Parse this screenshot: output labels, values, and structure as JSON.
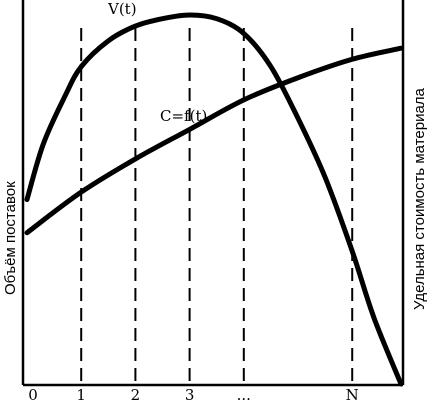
{
  "chart_data": {
    "type": "line",
    "title": "",
    "xlabel": "",
    "ylabel_left": "Объём поставок",
    "ylabel_right": "Удельная стоимость материала",
    "x_tick_labels": [
      "0",
      "1",
      "2",
      "3",
      "...",
      "N"
    ],
    "x_tick_positions": [
      0,
      1,
      2,
      3,
      4,
      6
    ],
    "dashed_lines_at": [
      1,
      2,
      3,
      4,
      6
    ],
    "xlim": [
      0,
      6.9
    ],
    "ylim": [
      0,
      1
    ],
    "grid": false,
    "series": [
      {
        "name": "V(t)",
        "x": [
          0,
          0.3,
          0.7,
          1,
          1.5,
          2,
          2.5,
          3,
          3.5,
          4,
          4.5,
          5,
          5.5,
          6,
          6.4,
          6.9
        ],
        "values": [
          0.5,
          0.65,
          0.78,
          0.86,
          0.93,
          0.97,
          0.99,
          1.0,
          0.99,
          0.95,
          0.86,
          0.72,
          0.56,
          0.36,
          0.18,
          0.0
        ]
      },
      {
        "name": "C=f(t)",
        "x": [
          0,
          1,
          2,
          3,
          4,
          5,
          6,
          6.9
        ],
        "values": [
          0.41,
          0.52,
          0.61,
          0.69,
          0.77,
          0.83,
          0.88,
          0.91
        ]
      }
    ]
  }
}
